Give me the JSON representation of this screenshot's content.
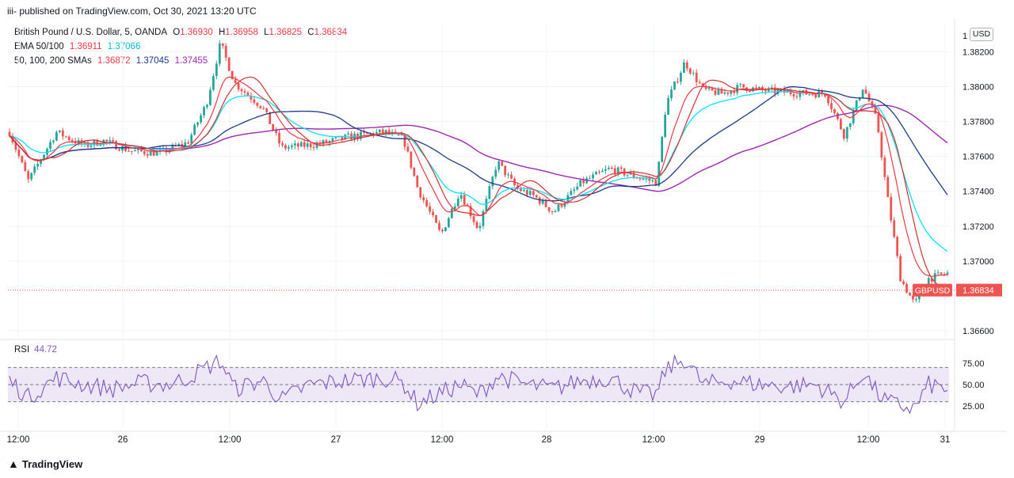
{
  "header": {
    "published": "iii- published on TradingView.com, Oct 30, 2021 13:20 UTC"
  },
  "legend": {
    "symbol": "British Pound / U.S. Dollar, 5, OANDA",
    "o_label": "O",
    "o": "1.36930",
    "h_label": "H",
    "h": "1.36958",
    "l_label": "L",
    "l": "1.36825",
    "c_label": "C",
    "c": "1.36834",
    "ema_label": "EMA 50/100",
    "ema50": "1.36911",
    "ema100": "1.37066",
    "sma_label": "50, 100, 200 SMAs",
    "sma50": "1.36872",
    "sma100": "1.37045",
    "sma200": "1.37455"
  },
  "currency": "USD",
  "price_badge": {
    "symbol": "GBPUSD",
    "price": "1.36834"
  },
  "rsi": {
    "label": "RSI",
    "value": "44.72"
  },
  "colors": {
    "up": "#26a69a",
    "down": "#ef5350",
    "ema50": "#f23645",
    "ema100": "#00e5ff",
    "sma50": "#d32f2f",
    "sma100": "#1e3a8a",
    "sma200": "#9c27b0",
    "rsi": "#7e57c2",
    "rsi_band": "#ede7f6",
    "grid": "#f0f3fa"
  },
  "brand": "TradingView",
  "chart_data": {
    "type": "candlestick",
    "price_axis": {
      "ticks": [
        "1.38200",
        "1.38000",
        "1.37800",
        "1.37600",
        "1.37400",
        "1.37200",
        "1.37000",
        "1.36600"
      ],
      "tick_values": [
        1.382,
        1.38,
        1.378,
        1.376,
        1.374,
        1.372,
        1.37,
        1.366
      ],
      "top_partial_label": "1"
    },
    "rsi_axis": {
      "ticks": [
        "75.00",
        "50.00",
        "25.00"
      ],
      "tick_values": [
        75,
        50,
        25
      ],
      "band": [
        30,
        70
      ]
    },
    "time_axis": {
      "ticks": [
        "12:00",
        "26",
        "12:00",
        "27",
        "12:00",
        "28",
        "12:00",
        "29",
        "12:00",
        "31"
      ]
    },
    "price_keypoints": [
      [
        0,
        1.3774
      ],
      [
        0.02,
        1.3746
      ],
      [
        0.05,
        1.3774
      ],
      [
        0.08,
        1.3766
      ],
      [
        0.1,
        1.3769
      ],
      [
        0.13,
        1.3763
      ],
      [
        0.16,
        1.3762
      ],
      [
        0.19,
        1.3768
      ],
      [
        0.21,
        1.379
      ],
      [
        0.225,
        1.3825
      ],
      [
        0.24,
        1.3802
      ],
      [
        0.27,
        1.3788
      ],
      [
        0.29,
        1.3765
      ],
      [
        0.33,
        1.3767
      ],
      [
        0.36,
        1.3771
      ],
      [
        0.4,
        1.3774
      ],
      [
        0.42,
        1.377
      ],
      [
        0.435,
        1.3742
      ],
      [
        0.46,
        1.3715
      ],
      [
        0.48,
        1.374
      ],
      [
        0.5,
        1.3718
      ],
      [
        0.52,
        1.3757
      ],
      [
        0.54,
        1.3742
      ],
      [
        0.56,
        1.3737
      ],
      [
        0.58,
        1.3728
      ],
      [
        0.61,
        1.3745
      ],
      [
        0.64,
        1.3753
      ],
      [
        0.67,
        1.3748
      ],
      [
        0.69,
        1.3745
      ],
      [
        0.7,
        1.379
      ],
      [
        0.72,
        1.3814
      ],
      [
        0.74,
        1.3798
      ],
      [
        0.76,
        1.3796
      ],
      [
        0.78,
        1.38
      ],
      [
        0.8,
        1.3798
      ],
      [
        0.82,
        1.3797
      ],
      [
        0.85,
        1.3796
      ],
      [
        0.87,
        1.3796
      ],
      [
        0.89,
        1.3772
      ],
      [
        0.91,
        1.38
      ],
      [
        0.925,
        1.378
      ],
      [
        0.935,
        1.374
      ],
      [
        0.95,
        1.369
      ],
      [
        0.965,
        1.3675
      ],
      [
        0.98,
        1.369
      ],
      [
        1.0,
        1.3693
      ]
    ],
    "rsi_keypoints": [
      [
        0,
        55
      ],
      [
        0.02,
        35
      ],
      [
        0.05,
        58
      ],
      [
        0.08,
        50
      ],
      [
        0.11,
        45
      ],
      [
        0.14,
        52
      ],
      [
        0.17,
        50
      ],
      [
        0.19,
        58
      ],
      [
        0.21,
        70
      ],
      [
        0.225,
        78
      ],
      [
        0.24,
        45
      ],
      [
        0.27,
        55
      ],
      [
        0.29,
        32
      ],
      [
        0.32,
        50
      ],
      [
        0.36,
        55
      ],
      [
        0.4,
        58
      ],
      [
        0.42,
        52
      ],
      [
        0.435,
        28
      ],
      [
        0.46,
        40
      ],
      [
        0.48,
        50
      ],
      [
        0.5,
        38
      ],
      [
        0.52,
        60
      ],
      [
        0.55,
        50
      ],
      [
        0.58,
        45
      ],
      [
        0.61,
        55
      ],
      [
        0.64,
        58
      ],
      [
        0.67,
        40
      ],
      [
        0.69,
        38
      ],
      [
        0.7,
        68
      ],
      [
        0.72,
        80
      ],
      [
        0.74,
        50
      ],
      [
        0.77,
        55
      ],
      [
        0.8,
        50
      ],
      [
        0.83,
        48
      ],
      [
        0.86,
        50
      ],
      [
        0.89,
        30
      ],
      [
        0.91,
        65
      ],
      [
        0.925,
        40
      ],
      [
        0.935,
        30
      ],
      [
        0.95,
        25
      ],
      [
        0.965,
        22
      ],
      [
        0.98,
        50
      ],
      [
        1.0,
        45
      ]
    ],
    "last_price": 1.36834
  }
}
